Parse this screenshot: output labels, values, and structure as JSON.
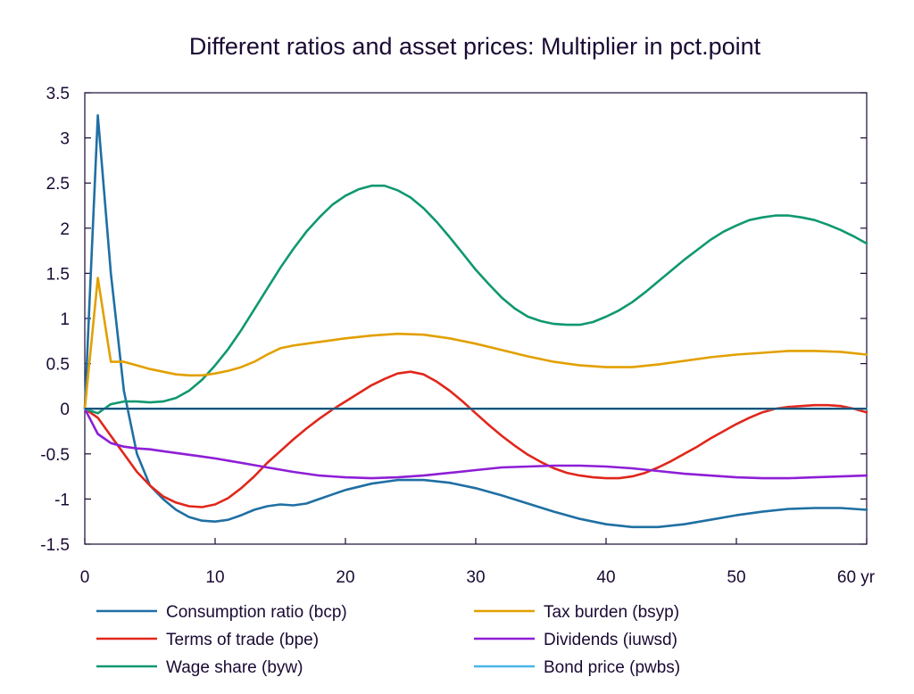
{
  "chart_data": {
    "type": "line",
    "title": "Different ratios and asset prices: Multiplier in pct.point",
    "xlabel": "",
    "ylabel": "",
    "x_unit_label": "yr",
    "xlim": [
      0,
      60
    ],
    "ylim": [
      -1.5,
      3.5
    ],
    "x_ticks": [
      0,
      10,
      20,
      30,
      40,
      50,
      60
    ],
    "x_tick_labels": [
      "0",
      "10",
      "20",
      "30",
      "40",
      "50",
      "60 yr"
    ],
    "y_ticks": [
      -1.5,
      -1,
      -0.5,
      0,
      0.5,
      1,
      1.5,
      2,
      2.5,
      3,
      3.5
    ],
    "y_tick_labels": [
      "-1.5",
      "-1",
      "-0.5",
      "0",
      "0.5",
      "1",
      "1.5",
      "2",
      "2.5",
      "3",
      "3.5"
    ],
    "grid": false,
    "zero_line": true,
    "legend_position": "bottom",
    "series": [
      {
        "name": "Consumption ratio (bcp)",
        "color": "#1f6fa3",
        "points": [
          [
            0,
            0
          ],
          [
            1,
            3.25
          ],
          [
            2,
            1.5
          ],
          [
            3,
            0.2
          ],
          [
            4,
            -0.5
          ],
          [
            5,
            -0.85
          ],
          [
            6,
            -1.0
          ],
          [
            7,
            -1.12
          ],
          [
            8,
            -1.2
          ],
          [
            9,
            -1.24
          ],
          [
            10,
            -1.25
          ],
          [
            11,
            -1.23
          ],
          [
            12,
            -1.18
          ],
          [
            13,
            -1.12
          ],
          [
            14,
            -1.08
          ],
          [
            15,
            -1.06
          ],
          [
            16,
            -1.07
          ],
          [
            17,
            -1.05
          ],
          [
            18,
            -1.0
          ],
          [
            19,
            -0.95
          ],
          [
            20,
            -0.9
          ],
          [
            22,
            -0.83
          ],
          [
            24,
            -0.79
          ],
          [
            26,
            -0.79
          ],
          [
            28,
            -0.82
          ],
          [
            30,
            -0.88
          ],
          [
            32,
            -0.96
          ],
          [
            34,
            -1.05
          ],
          [
            36,
            -1.14
          ],
          [
            38,
            -1.22
          ],
          [
            40,
            -1.28
          ],
          [
            42,
            -1.31
          ],
          [
            44,
            -1.31
          ],
          [
            46,
            -1.28
          ],
          [
            48,
            -1.23
          ],
          [
            50,
            -1.18
          ],
          [
            52,
            -1.14
          ],
          [
            54,
            -1.11
          ],
          [
            56,
            -1.1
          ],
          [
            58,
            -1.1
          ],
          [
            60,
            -1.12
          ]
        ]
      },
      {
        "name": "Terms of trade (bpe)",
        "color": "#e0271b",
        "points": [
          [
            0,
            0
          ],
          [
            1,
            -0.1
          ],
          [
            2,
            -0.3
          ],
          [
            3,
            -0.5
          ],
          [
            4,
            -0.7
          ],
          [
            5,
            -0.85
          ],
          [
            6,
            -0.97
          ],
          [
            7,
            -1.04
          ],
          [
            8,
            -1.08
          ],
          [
            9,
            -1.09
          ],
          [
            10,
            -1.06
          ],
          [
            11,
            -0.99
          ],
          [
            12,
            -0.88
          ],
          [
            13,
            -0.75
          ],
          [
            14,
            -0.6
          ],
          [
            15,
            -0.47
          ],
          [
            16,
            -0.34
          ],
          [
            17,
            -0.22
          ],
          [
            18,
            -0.11
          ],
          [
            19,
            -0.01
          ],
          [
            20,
            0.08
          ],
          [
            21,
            0.17
          ],
          [
            22,
            0.26
          ],
          [
            23,
            0.33
          ],
          [
            24,
            0.39
          ],
          [
            25,
            0.41
          ],
          [
            26,
            0.38
          ],
          [
            27,
            0.3
          ],
          [
            28,
            0.2
          ],
          [
            29,
            0.08
          ],
          [
            30,
            -0.05
          ],
          [
            31,
            -0.18
          ],
          [
            32,
            -0.3
          ],
          [
            33,
            -0.41
          ],
          [
            34,
            -0.51
          ],
          [
            35,
            -0.59
          ],
          [
            36,
            -0.66
          ],
          [
            37,
            -0.71
          ],
          [
            38,
            -0.74
          ],
          [
            39,
            -0.76
          ],
          [
            40,
            -0.77
          ],
          [
            41,
            -0.77
          ],
          [
            42,
            -0.75
          ],
          [
            43,
            -0.71
          ],
          [
            44,
            -0.65
          ],
          [
            45,
            -0.58
          ],
          [
            46,
            -0.5
          ],
          [
            47,
            -0.42
          ],
          [
            48,
            -0.33
          ],
          [
            49,
            -0.25
          ],
          [
            50,
            -0.17
          ],
          [
            51,
            -0.1
          ],
          [
            52,
            -0.04
          ],
          [
            53,
            0.0
          ],
          [
            54,
            0.02
          ],
          [
            55,
            0.03
          ],
          [
            56,
            0.04
          ],
          [
            57,
            0.04
          ],
          [
            58,
            0.03
          ],
          [
            59,
            0.0
          ],
          [
            60,
            -0.04
          ]
        ]
      },
      {
        "name": "Wage share (byw)",
        "color": "#109870",
        "points": [
          [
            0,
            0
          ],
          [
            1,
            -0.05
          ],
          [
            2,
            0.05
          ],
          [
            3,
            0.08
          ],
          [
            4,
            0.08
          ],
          [
            5,
            0.07
          ],
          [
            6,
            0.08
          ],
          [
            7,
            0.12
          ],
          [
            8,
            0.2
          ],
          [
            9,
            0.32
          ],
          [
            10,
            0.48
          ],
          [
            11,
            0.66
          ],
          [
            12,
            0.87
          ],
          [
            13,
            1.1
          ],
          [
            14,
            1.33
          ],
          [
            15,
            1.56
          ],
          [
            16,
            1.77
          ],
          [
            17,
            1.96
          ],
          [
            18,
            2.12
          ],
          [
            19,
            2.26
          ],
          [
            20,
            2.36
          ],
          [
            21,
            2.43
          ],
          [
            22,
            2.47
          ],
          [
            23,
            2.47
          ],
          [
            24,
            2.42
          ],
          [
            25,
            2.34
          ],
          [
            26,
            2.22
          ],
          [
            27,
            2.07
          ],
          [
            28,
            1.9
          ],
          [
            29,
            1.72
          ],
          [
            30,
            1.54
          ],
          [
            31,
            1.38
          ],
          [
            32,
            1.23
          ],
          [
            33,
            1.11
          ],
          [
            34,
            1.02
          ],
          [
            35,
            0.97
          ],
          [
            36,
            0.94
          ],
          [
            37,
            0.93
          ],
          [
            38,
            0.93
          ],
          [
            39,
            0.96
          ],
          [
            40,
            1.02
          ],
          [
            41,
            1.09
          ],
          [
            42,
            1.18
          ],
          [
            43,
            1.29
          ],
          [
            44,
            1.41
          ],
          [
            45,
            1.53
          ],
          [
            46,
            1.65
          ],
          [
            47,
            1.76
          ],
          [
            48,
            1.87
          ],
          [
            49,
            1.96
          ],
          [
            50,
            2.03
          ],
          [
            51,
            2.09
          ],
          [
            52,
            2.12
          ],
          [
            53,
            2.14
          ],
          [
            54,
            2.14
          ],
          [
            55,
            2.12
          ],
          [
            56,
            2.09
          ],
          [
            57,
            2.04
          ],
          [
            58,
            1.98
          ],
          [
            59,
            1.91
          ],
          [
            60,
            1.83
          ]
        ]
      },
      {
        "name": "Tax burden (bsyp)",
        "color": "#e2a000",
        "points": [
          [
            0,
            0
          ],
          [
            1,
            1.45
          ],
          [
            2,
            0.52
          ],
          [
            3,
            0.52
          ],
          [
            4,
            0.48
          ],
          [
            5,
            0.44
          ],
          [
            6,
            0.41
          ],
          [
            7,
            0.38
          ],
          [
            8,
            0.37
          ],
          [
            9,
            0.37
          ],
          [
            10,
            0.39
          ],
          [
            11,
            0.42
          ],
          [
            12,
            0.46
          ],
          [
            13,
            0.52
          ],
          [
            14,
            0.6
          ],
          [
            15,
            0.67
          ],
          [
            16,
            0.7
          ],
          [
            17,
            0.72
          ],
          [
            18,
            0.74
          ],
          [
            19,
            0.76
          ],
          [
            20,
            0.78
          ],
          [
            22,
            0.81
          ],
          [
            24,
            0.83
          ],
          [
            26,
            0.82
          ],
          [
            28,
            0.78
          ],
          [
            30,
            0.72
          ],
          [
            32,
            0.65
          ],
          [
            34,
            0.58
          ],
          [
            36,
            0.52
          ],
          [
            38,
            0.48
          ],
          [
            40,
            0.46
          ],
          [
            42,
            0.46
          ],
          [
            44,
            0.49
          ],
          [
            46,
            0.53
          ],
          [
            48,
            0.57
          ],
          [
            50,
            0.6
          ],
          [
            52,
            0.62
          ],
          [
            54,
            0.64
          ],
          [
            56,
            0.64
          ],
          [
            58,
            0.63
          ],
          [
            60,
            0.6
          ]
        ]
      },
      {
        "name": "Dividends (iuwsd)",
        "color": "#8e1ed6",
        "points": [
          [
            0,
            0
          ],
          [
            1,
            -0.28
          ],
          [
            2,
            -0.38
          ],
          [
            3,
            -0.42
          ],
          [
            4,
            -0.44
          ],
          [
            5,
            -0.45
          ],
          [
            6,
            -0.47
          ],
          [
            7,
            -0.49
          ],
          [
            8,
            -0.51
          ],
          [
            9,
            -0.53
          ],
          [
            10,
            -0.55
          ],
          [
            12,
            -0.6
          ],
          [
            14,
            -0.65
          ],
          [
            16,
            -0.7
          ],
          [
            18,
            -0.74
          ],
          [
            20,
            -0.76
          ],
          [
            22,
            -0.77
          ],
          [
            24,
            -0.76
          ],
          [
            26,
            -0.74
          ],
          [
            28,
            -0.71
          ],
          [
            30,
            -0.68
          ],
          [
            32,
            -0.65
          ],
          [
            34,
            -0.64
          ],
          [
            36,
            -0.63
          ],
          [
            38,
            -0.63
          ],
          [
            40,
            -0.64
          ],
          [
            42,
            -0.66
          ],
          [
            44,
            -0.69
          ],
          [
            46,
            -0.72
          ],
          [
            48,
            -0.74
          ],
          [
            50,
            -0.76
          ],
          [
            52,
            -0.77
          ],
          [
            54,
            -0.77
          ],
          [
            56,
            -0.76
          ],
          [
            58,
            -0.75
          ],
          [
            60,
            -0.74
          ]
        ]
      },
      {
        "name": "Bond price (pwbs)",
        "color": "#49b4e8",
        "points": [
          [
            0,
            0
          ],
          [
            60,
            0
          ]
        ]
      }
    ]
  },
  "colors": {
    "axis": "#1a0a33",
    "zero_line": "#123a5c",
    "text": "#1a0a33"
  }
}
